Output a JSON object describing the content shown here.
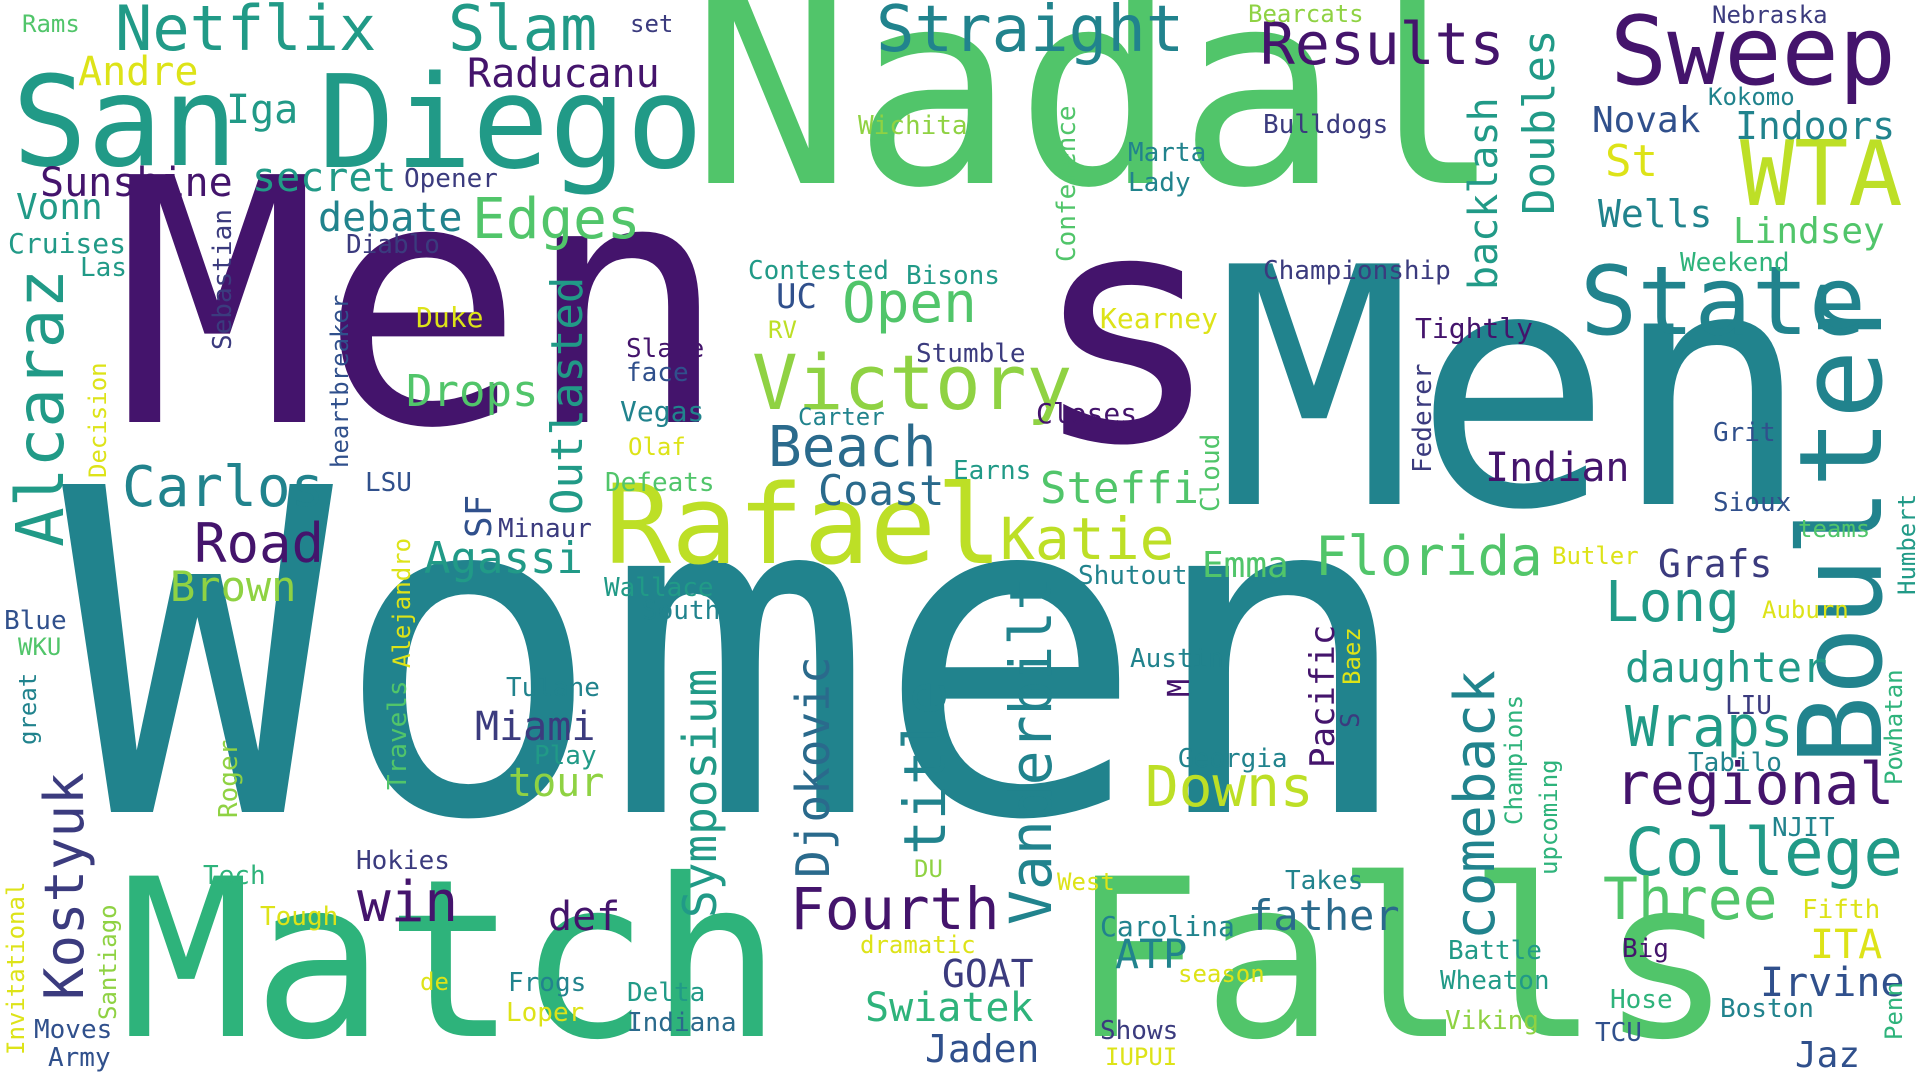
{
  "words": {
    "women": "Women",
    "men_left": "Men",
    "men_right": "Men",
    "nadal": "Nadal",
    "s_big": "s",
    "match": "Match",
    "falls": "Falls",
    "san": "San",
    "diego": "Diego",
    "rafael": "Rafael",
    "boulter": "Boulter",
    "state": "State",
    "sweep": "Sweep",
    "netflix": "Netflix",
    "slam": "Slam",
    "straight": "Straight",
    "victory": "Victory",
    "college": "College",
    "alcaraz": "Alcaraz",
    "kostyuk": "Kostyuk",
    "wta": "WTA",
    "results": "Results",
    "fourth": "Fourth",
    "three": "Three",
    "vanderbilt": "Vanderbilt",
    "comeback": "comeback",
    "regional": "regional",
    "title": "title",
    "downs": "Downs",
    "carlos": "Carlos",
    "beach": "Beach",
    "florida": "Florida",
    "katie": "Katie",
    "road": "Road",
    "djokovic": "Djokovic",
    "symposium": "Symposium",
    "outlasted": "Outlasted",
    "edges": "Edges",
    "open": "Open",
    "wraps": "Wraps",
    "long": "Long",
    "win": "win",
    "doubles": "Doubles",
    "backlash": "backlash",
    "father": "father",
    "daughter": "daughter",
    "raducanu": "Raducanu",
    "andre": "Andre",
    "iga": "Iga",
    "secret": "secret",
    "sunshine": "Sunshine",
    "debate": "debate",
    "vonn": "Vonn",
    "cruises": "Cruises",
    "las": "Las",
    "drops": "Drops",
    "agassi": "Agassi",
    "brown": "Brown",
    "steffi": "Steffi",
    "coast": "Coast",
    "indian": "Indian",
    "grafs": "Grafs",
    "emma": "Emma",
    "pacific": "Pacific",
    "miami": "Miami",
    "tour": "tour",
    "swiatek": "Swiatek",
    "goat": "GOAT",
    "jaden": "Jaden",
    "atp": "ATP",
    "irvine": "Irvine",
    "ita": "ITA",
    "jaz": "Jaz",
    "def": "def",
    "novak": "Novak",
    "indoors": "Indoors",
    "wells": "Wells",
    "lindsey": "Lindsey",
    "st": "St",
    "rams": "Rams",
    "set": "set",
    "bearcats": "Bearcats",
    "nebraska": "Nebraska",
    "kokomo": "Kokomo",
    "wichita": "Wichita",
    "bulldogs": "Bulldogs",
    "conference": "Conference",
    "marta": "Marta",
    "lady": "Lady",
    "opener": "Opener",
    "diablo": "Diablo",
    "sebastian": "Sebastian",
    "contested": "Contested",
    "bisons": "Bisons",
    "championship": "Championship",
    "weekend": "Weekend",
    "uc": "UC",
    "rv": "RV",
    "duke": "Duke",
    "kearney": "Kearney",
    "tightly": "Tightly",
    "heartbreaker": "heartbreaker",
    "decision": "Decision",
    "slate": "Slate",
    "face": "face",
    "stumble": "Stumble",
    "vegas": "Vegas",
    "carter": "Carter",
    "closes": "Closes",
    "federer": "Federer",
    "grit": "Grit",
    "olaf": "Olaf",
    "cloud": "Cloud",
    "lsu": "LSU",
    "defeats": "Defeats",
    "earns": "Earns",
    "sioux": "Sioux",
    "sf": "SF",
    "minaur": "Minaur",
    "teams": "teams",
    "humbert": "Humbert",
    "alejandro": "Alejandro",
    "butler": "Butler",
    "shutout": "Shutout",
    "wallace": "Wallace",
    "south": "South",
    "blue": "Blue",
    "auburn": "Auburn",
    "wku": "WKU",
    "baez": "Baez",
    "s_small": "S",
    "austin": "Austin",
    "m_small": "M",
    "great": "great",
    "tulane": "Tulane",
    "champions": "Champions",
    "liu": "LIU",
    "powhatan": "Powhatan",
    "travels": "Travels",
    "play": "Play",
    "georgia": "Georgia",
    "tabilo": "Tabilo",
    "roger": "Roger",
    "upcoming": "upcoming",
    "njit": "NJIT",
    "invitational": "Invitational",
    "hokies": "Hokies",
    "tech": "Tech",
    "du": "DU",
    "west": "West",
    "takes": "Takes",
    "tough": "Tough",
    "carolina": "Carolina",
    "fifth": "Fifth",
    "santiago": "Santiago",
    "dramatic": "dramatic",
    "battle": "Battle",
    "big": "Big",
    "de": "de",
    "season": "season",
    "frogs": "Frogs",
    "delta": "Delta",
    "wheaton": "Wheaton",
    "loper": "Loper",
    "hose": "Hose",
    "boston": "Boston",
    "moves": "Moves",
    "indiana": "Indiana",
    "viking": "Viking",
    "penn": "Penn",
    "army": "Army",
    "shows": "Shows",
    "tcu": "TCU",
    "iupui": "IUPUI"
  }
}
